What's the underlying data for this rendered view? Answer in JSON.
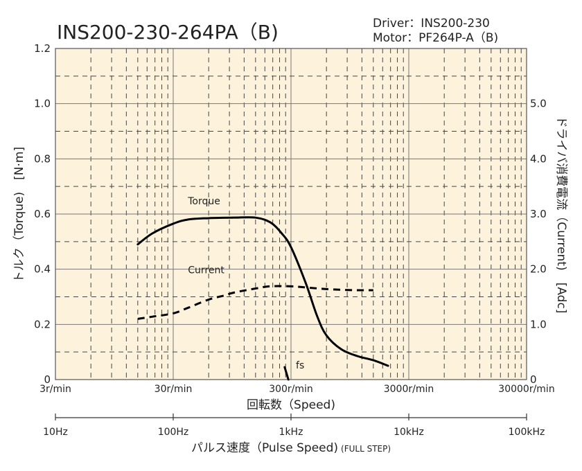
{
  "chart_data": {
    "type": "line",
    "title": "INS200-230-264PA（B)",
    "info": [
      "Driver：INS200-230",
      "Motor：PF264P-A（B)"
    ],
    "x_axis": {
      "label": "回転数（Speed)",
      "scale": "log",
      "range_r_per_min": [
        3,
        30000
      ],
      "tick_labels": [
        "3r/min",
        "30r/min",
        "300r/min",
        "3000r/min",
        "30000r/min"
      ]
    },
    "x2_axis": {
      "label": "パルス速度（Pulse Speed)",
      "label_suffix": "(FULL STEP)",
      "range_hz": [
        10,
        100000
      ],
      "tick_labels": [
        "10Hz",
        "100Hz",
        "1kHz",
        "10kHz",
        "100kHz"
      ]
    },
    "y_axis": {
      "label": "トルク（Torque)　[N·m]",
      "range": [
        0,
        1.2
      ],
      "tick_values": [
        0,
        0.2,
        0.4,
        0.6,
        0.8,
        1.0,
        1.2
      ],
      "tick_labels": [
        "0",
        "0.2",
        "0.4",
        "0.6",
        "0.8",
        "1.0",
        "1.2"
      ]
    },
    "y2_axis": {
      "label": "ドライバ消費電流（Current)　[Adc]",
      "range": [
        0,
        6
      ],
      "tick_values": [
        0,
        1,
        2,
        3,
        4,
        5
      ],
      "tick_labels": [
        "0",
        "1.0",
        "2.0",
        "3.0",
        "4.0",
        "5.0"
      ]
    },
    "grid": true,
    "background_color": "#fdf3dc",
    "series": [
      {
        "name": "Torque",
        "axis": "left",
        "style": "solid",
        "color": "#000000",
        "x_r_per_min": [
          15,
          20,
          30,
          40,
          60,
          100,
          150,
          200,
          250,
          300,
          400,
          500,
          600,
          800,
          1100,
          1500,
          2000
        ],
        "y": [
          0.49,
          0.53,
          0.565,
          0.58,
          0.585,
          0.587,
          0.587,
          0.57,
          0.53,
          0.48,
          0.35,
          0.23,
          0.16,
          0.11,
          0.085,
          0.07,
          0.05
        ]
      },
      {
        "name": "Current",
        "axis": "right",
        "style": "dashed",
        "color": "#000000",
        "x_r_per_min": [
          15,
          20,
          30,
          40,
          60,
          80,
          100,
          150,
          200,
          300,
          400,
          600,
          1000,
          1500
        ],
        "y": [
          1.1,
          1.14,
          1.2,
          1.3,
          1.45,
          1.52,
          1.58,
          1.65,
          1.69,
          1.69,
          1.67,
          1.64,
          1.62,
          1.62
        ]
      },
      {
        "name": "fs",
        "axis": "left",
        "style": "solid",
        "color": "#000000",
        "x_r_per_min": [
          265,
          285
        ],
        "y": [
          0.045,
          0
        ]
      }
    ]
  }
}
